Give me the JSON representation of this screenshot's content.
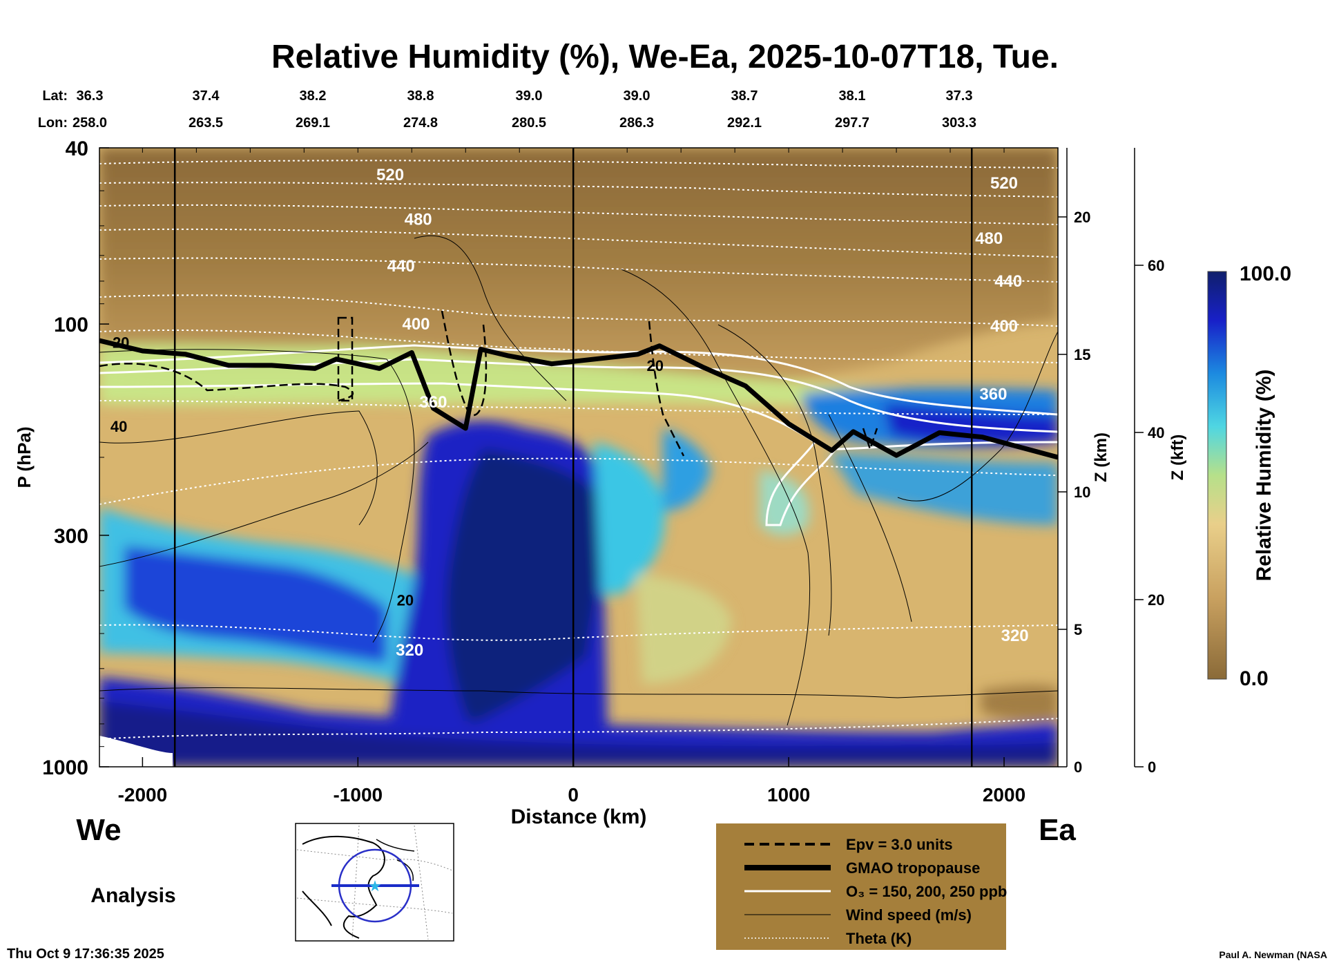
{
  "chart_data": {
    "type": "heatmap",
    "title": "Relative Humidity (%), We-Ea, 2025-10-07T18, Tue.",
    "xlabel": "Distance (km)",
    "ylabel": "P (hPa)",
    "y2label": "Z (km)",
    "y3label": "Z (kft)",
    "colorbar_label": "Relative Humidity (%)",
    "colorbar_max_label": "100.0",
    "colorbar_min_label": "0.0",
    "colorbar_range": [
      0,
      100
    ],
    "xlim": [
      -2200,
      2250
    ],
    "ylim_hpa": [
      1000,
      40
    ],
    "x_ticks": [
      -2000,
      -1000,
      0,
      1000,
      2000
    ],
    "x_tick_labels": [
      "-2000",
      "-1000",
      "0",
      "1000",
      "2000"
    ],
    "p_ticks": [
      40,
      100,
      300,
      1000
    ],
    "p_tick_labels": [
      "40",
      "100",
      "300",
      "1000"
    ],
    "z_km_ticks": [
      0,
      5,
      10,
      15,
      20
    ],
    "z_km_tick_labels": [
      "0",
      "5",
      "10",
      "15",
      "20"
    ],
    "z_kft_ticks": [
      0,
      20,
      40,
      60
    ],
    "z_kft_tick_labels": [
      "0",
      "20",
      "40",
      "60"
    ],
    "lat_label": "Lat:",
    "lon_label": "Lon:",
    "latlon": [
      {
        "lat": "36.3",
        "lon": "258.0"
      },
      {
        "lat": "37.4",
        "lon": "263.5"
      },
      {
        "lat": "38.2",
        "lon": "269.1"
      },
      {
        "lat": "38.8",
        "lon": "274.8"
      },
      {
        "lat": "39.0",
        "lon": "280.5"
      },
      {
        "lat": "39.0",
        "lon": "286.3"
      },
      {
        "lat": "38.7",
        "lon": "292.1"
      },
      {
        "lat": "38.1",
        "lon": "297.7"
      },
      {
        "lat": "37.3",
        "lon": "303.3"
      }
    ],
    "west_label": "We",
    "east_label": "Ea",
    "vertical_markers_km": [
      -1850,
      0,
      1850
    ],
    "theta_labels": [
      {
        "label": "520",
        "distance_km": -850,
        "p_hpa": 46
      },
      {
        "label": "480",
        "distance_km": -720,
        "p_hpa": 58
      },
      {
        "label": "440",
        "distance_km": -800,
        "p_hpa": 74
      },
      {
        "label": "400",
        "distance_km": -730,
        "p_hpa": 100
      },
      {
        "label": "360",
        "distance_km": -650,
        "p_hpa": 150
      },
      {
        "label": "320",
        "distance_km": -760,
        "p_hpa": 545
      },
      {
        "label": "520",
        "distance_km": 2000,
        "p_hpa": 48
      },
      {
        "label": "480",
        "distance_km": 1930,
        "p_hpa": 64
      },
      {
        "label": "440",
        "distance_km": 2020,
        "p_hpa": 80
      },
      {
        "label": "400",
        "distance_km": 2000,
        "p_hpa": 101
      },
      {
        "label": "360",
        "distance_km": 1950,
        "p_hpa": 144
      },
      {
        "label": "320",
        "distance_km": 2050,
        "p_hpa": 505
      }
    ],
    "wind_labels": [
      {
        "label": "20",
        "distance_km": -2100,
        "p_hpa": 110
      },
      {
        "label": "40",
        "distance_km": -2110,
        "p_hpa": 170
      },
      {
        "label": "20",
        "distance_km": -780,
        "p_hpa": 420
      },
      {
        "label": "20",
        "distance_km": 380,
        "p_hpa": 124
      }
    ],
    "tropopause_hpa": [
      {
        "x": -2200,
        "p": 109
      },
      {
        "x": -2000,
        "p": 115
      },
      {
        "x": -1800,
        "p": 117
      },
      {
        "x": -1600,
        "p": 124
      },
      {
        "x": -1400,
        "p": 124
      },
      {
        "x": -1200,
        "p": 126
      },
      {
        "x": -1100,
        "p": 120
      },
      {
        "x": -900,
        "p": 126
      },
      {
        "x": -750,
        "p": 116
      },
      {
        "x": -650,
        "p": 155
      },
      {
        "x": -500,
        "p": 172
      },
      {
        "x": -430,
        "p": 114
      },
      {
        "x": -300,
        "p": 118
      },
      {
        "x": -100,
        "p": 123
      },
      {
        "x": 100,
        "p": 120
      },
      {
        "x": 300,
        "p": 117
      },
      {
        "x": 400,
        "p": 112
      },
      {
        "x": 600,
        "p": 125
      },
      {
        "x": 800,
        "p": 138
      },
      {
        "x": 1000,
        "p": 168
      },
      {
        "x": 1200,
        "p": 193
      },
      {
        "x": 1300,
        "p": 175
      },
      {
        "x": 1500,
        "p": 198
      },
      {
        "x": 1700,
        "p": 176
      },
      {
        "x": 1900,
        "p": 180
      },
      {
        "x": 2250,
        "p": 200
      }
    ],
    "theta_levels_k": [
      320,
      360,
      400,
      440,
      480,
      520
    ],
    "legend": [
      {
        "label": "Epv = 3.0 units",
        "style": "dashed-black"
      },
      {
        "label": "GMAO tropopause",
        "style": "thick-black"
      },
      {
        "label": "O₃ = 150, 200, 250 ppb",
        "style": "white"
      },
      {
        "label": "Wind speed (m/s)",
        "style": "thin-black"
      },
      {
        "label": "Theta (K)",
        "style": "dotted-white"
      }
    ]
  },
  "panel_label": "Analysis",
  "timestamp": "Thu Oct  9 17:36:35 2025",
  "credit": "Paul A. Newman (NASA",
  "colors": {
    "dry_brown": "#8a6a38",
    "mid_tan": "#d3ae6a",
    "cyan": "#4fd6e2",
    "blue": "#1820c8",
    "navy": "#0f1f6b",
    "legend_bg": "#a57f3b"
  }
}
